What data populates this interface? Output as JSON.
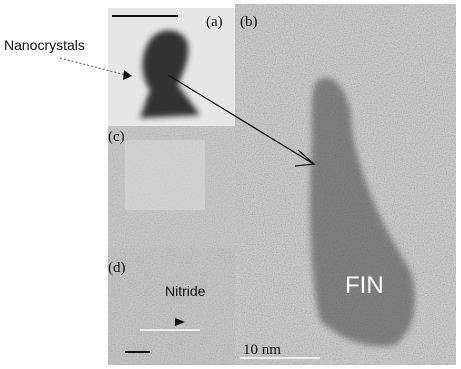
{
  "panels": {
    "a": "(a)",
    "b": "(b)",
    "c": "(c)",
    "d": "(d)"
  },
  "annotations": {
    "callout": "Nanocrystals",
    "nitride": "Nitride",
    "fin": "FIN",
    "scale": "10 nm"
  }
}
